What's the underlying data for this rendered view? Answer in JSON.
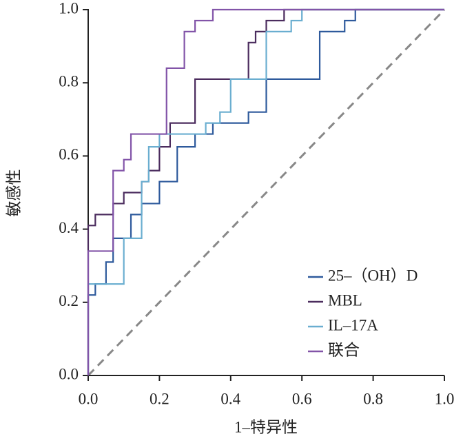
{
  "chart_data": {
    "type": "line",
    "x_label": "1–特异性",
    "y_label": "敏感性",
    "xlim": [
      0,
      1
    ],
    "ylim": [
      0,
      1
    ],
    "xticks": [
      {
        "value": 0,
        "label": "0.0"
      },
      0.2,
      0.4,
      0.6,
      0.8,
      {
        "value": 1,
        "label": "1.0"
      }
    ],
    "yticks": [
      {
        "value": 0,
        "label": "0.0"
      },
      0.2,
      0.4,
      0.6,
      0.8,
      {
        "value": 1,
        "label": "1.0"
      }
    ],
    "grid": false,
    "legend": "lower right",
    "series": [
      {
        "name": "25–（OH）D",
        "color": "#2e5a9c",
        "x": [
          0,
          0,
          0.02,
          0.02,
          0.05,
          0.05,
          0.07,
          0.07,
          0.12,
          0.12,
          0.15,
          0.15,
          0.2,
          0.2,
          0.25,
          0.25,
          0.3,
          0.3,
          0.35,
          0.35,
          0.45,
          0.45,
          0.5,
          0.5,
          0.65,
          0.65,
          0.72,
          0.72,
          0.75,
          0.75,
          1
        ],
        "values": [
          0,
          0.22,
          0.22,
          0.25,
          0.25,
          0.31,
          0.31,
          0.375,
          0.375,
          0.44,
          0.44,
          0.47,
          0.47,
          0.53,
          0.53,
          0.625,
          0.625,
          0.66,
          0.66,
          0.69,
          0.69,
          0.72,
          0.72,
          0.81,
          0.81,
          0.94,
          0.94,
          0.97,
          0.97,
          1,
          1
        ]
      },
      {
        "name": "MBL",
        "color": "#4b2c5e",
        "x": [
          0,
          0,
          0.02,
          0.02,
          0.07,
          0.07,
          0.1,
          0.1,
          0.15,
          0.15,
          0.17,
          0.17,
          0.2,
          0.2,
          0.23,
          0.23,
          0.3,
          0.3,
          0.45,
          0.45,
          0.47,
          0.47,
          0.5,
          0.5,
          0.55,
          0.55,
          1
        ],
        "values": [
          0,
          0.41,
          0.41,
          0.44,
          0.44,
          0.47,
          0.47,
          0.5,
          0.5,
          0.53,
          0.53,
          0.56,
          0.56,
          0.625,
          0.625,
          0.69,
          0.69,
          0.81,
          0.81,
          0.91,
          0.91,
          0.94,
          0.94,
          0.97,
          0.97,
          1,
          1
        ]
      },
      {
        "name": "IL–17A",
        "color": "#6aaed0",
        "x": [
          0,
          0,
          0.1,
          0.1,
          0.15,
          0.15,
          0.17,
          0.17,
          0.2,
          0.2,
          0.33,
          0.33,
          0.37,
          0.37,
          0.4,
          0.4,
          0.5,
          0.5,
          0.57,
          0.57,
          0.6,
          0.6,
          1
        ],
        "values": [
          0,
          0.25,
          0.25,
          0.375,
          0.375,
          0.53,
          0.53,
          0.625,
          0.625,
          0.66,
          0.66,
          0.69,
          0.69,
          0.72,
          0.72,
          0.81,
          0.81,
          0.94,
          0.94,
          0.97,
          0.97,
          1,
          1
        ]
      },
      {
        "name": "联合",
        "color": "#8254a8",
        "x": [
          0,
          0,
          0.07,
          0.07,
          0.1,
          0.1,
          0.12,
          0.12,
          0.22,
          0.22,
          0.27,
          0.27,
          0.3,
          0.3,
          0.35,
          0.35,
          1
        ],
        "values": [
          0,
          0.34,
          0.34,
          0.56,
          0.56,
          0.59,
          0.59,
          0.66,
          0.66,
          0.84,
          0.84,
          0.94,
          0.94,
          0.97,
          0.97,
          1,
          1
        ]
      }
    ]
  }
}
